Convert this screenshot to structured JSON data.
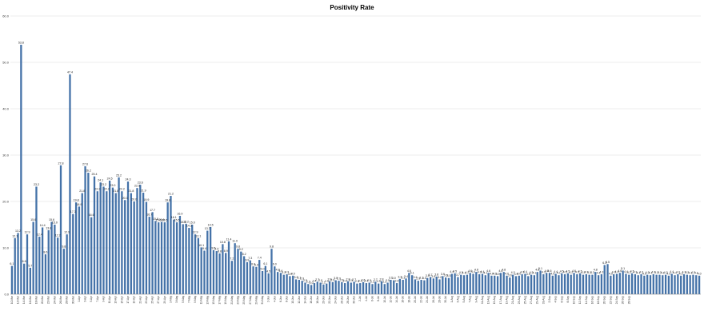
{
  "chart_data": {
    "type": "bar",
    "title": "Positivity Rate",
    "xlabel": "",
    "ylabel": "",
    "ylim": [
      0,
      60
    ],
    "yticks": [
      0,
      10,
      20,
      30,
      40,
      50,
      60
    ],
    "ytick_labels": [
      "0.0",
      "10.0",
      "20.0",
      "30.0",
      "40.0",
      "50.0",
      "60.0"
    ],
    "grid": true,
    "legend": "none",
    "bar_color": "#4472a8",
    "x_tick_labels": [
      "10-Mar",
      "12-Mar",
      "14-Mar",
      "16-Mar",
      "18-Mar",
      "20-Mar",
      "22-Mar",
      "24-Mar",
      "26-Mar",
      "28-Mar",
      "30-Mar",
      "1-Apr",
      "3-Apr",
      "5-Apr",
      "7-Apr",
      "9-Apr",
      "11-Apr",
      "13-Apr",
      "15-Apr",
      "17-Apr",
      "19-Apr",
      "21-Apr",
      "23-Apr",
      "25-Apr",
      "27-Apr",
      "29-Apr",
      "1-May",
      "3-May",
      "5-May",
      "7-May",
      "9-May",
      "11-May",
      "13-May",
      "15-May",
      "17-May",
      "19-May",
      "21-May",
      "23-May",
      "25-May",
      "27-May",
      "29-May",
      "31-May",
      "2-Jun",
      "4-Jun",
      "6-Jun",
      "8-Jun",
      "10-Jun",
      "12-Jun",
      "14-Jun",
      "16-Jun",
      "18-Jun",
      "20-Jun",
      "22-Jun",
      "24-Jun",
      "26-Jun",
      "28-Jun",
      "30-Jun",
      "2-Jul",
      "4-Jul",
      "6-Jul",
      "8-Jul",
      "10-Jul",
      "12-Jul",
      "14-Jul",
      "16-Jul",
      "18-Jul",
      "20-Jul",
      "22-Jul",
      "24-Jul",
      "26-Jul",
      "28-Jul",
      "30-Jul",
      "1-Aug",
      "3-Aug",
      "5-Aug",
      "7-Aug",
      "9-Aug",
      "11-Aug",
      "13-Aug",
      "15-Aug",
      "17-Aug",
      "19-Aug",
      "21-Aug",
      "23-Aug",
      "25-Aug",
      "27-Aug",
      "29-Aug",
      "31-Aug",
      "2-Sep",
      "4-Sep",
      "6-Sep",
      "8-Sep",
      "10-Sep",
      "12-Sep",
      "14-Sep",
      "16-Sep",
      "18-Sep",
      "20-Sep",
      "22-Sep",
      "24-Sep",
      "26-Sep",
      "28-Sep"
    ],
    "values": [
      6.1,
      12.1,
      13.2,
      53.8,
      6.6,
      12.9,
      5.7,
      15.6,
      23.2,
      12.4,
      14.4,
      8.6,
      13.8,
      15.6,
      15.0,
      12.2,
      27.8,
      9.8,
      12.9,
      47.4,
      17.3,
      19.8,
      18.9,
      21.8,
      27.6,
      26.2,
      16.6,
      25.4,
      22.2,
      24.1,
      23.2,
      22.2,
      24.5,
      23.0,
      21.8,
      25.2,
      22.2,
      20.3,
      24.3,
      21.8,
      20.0,
      22.9,
      23.6,
      21.9,
      19.9,
      16.7,
      17.7,
      15.8,
      15.5,
      15.6,
      15.5,
      19.8,
      21.2,
      16.1,
      15.5,
      16.9,
      15.1,
      15.2,
      14.3,
      15.0,
      12.9,
      12.1,
      10.1,
      9.4,
      13.7,
      14.5,
      9.5,
      9.3,
      8.8,
      10.8,
      8.9,
      11.4,
      7.2,
      11.0,
      9.8,
      9.2,
      8.2,
      6.9,
      7.3,
      6.0,
      5.9,
      7.4,
      5.0,
      6.1,
      4.5,
      9.8,
      6.0,
      4.8,
      4.6,
      4.2,
      4.3,
      3.9,
      4.0,
      3.2,
      3.1,
      2.9,
      2.5,
      2.2,
      2.0,
      2.4,
      2.7,
      2.5,
      2.1,
      2.3,
      2.8,
      2.6,
      3.0,
      2.9,
      2.6,
      2.4,
      2.8,
      2.5,
      2.7,
      2.3,
      2.4,
      2.6,
      2.4,
      2.5,
      2.2,
      2.7,
      2.3,
      2.8,
      2.2,
      2.5,
      3.1,
      3.0,
      2.4,
      3.3,
      3.1,
      3.4,
      4.6,
      4.1,
      3.2,
      2.9,
      3.1,
      3.0,
      3.5,
      3.7,
      3.4,
      3.8,
      3.2,
      3.9,
      3.6,
      3.5,
      4.4,
      4.5,
      3.7,
      4.2,
      4.1,
      4.2,
      4.6,
      4.4,
      4.8,
      4.3,
      4.4,
      4.1,
      4.6,
      4.0,
      4.0,
      3.9,
      4.6,
      4.8,
      4.0,
      3.6,
      4.2,
      3.9,
      4.0,
      4.3,
      4.4,
      3.9,
      4.2,
      4.1,
      4.8,
      5.1,
      4.3,
      4.6,
      4.6,
      4.0,
      4.4,
      4.1,
      4.5,
      4.3,
      4.5,
      4.2,
      4.6,
      4.3,
      4.5,
      4.2,
      4.3,
      4.2,
      4.2,
      4.8,
      4.1,
      4.3,
      6.3,
      6.5,
      4.0,
      4.3,
      4.4,
      4.6,
      5.1,
      4.4,
      4.2,
      4.5,
      4.3,
      4.1,
      4.3,
      4.0,
      4.2,
      4.1,
      4.3,
      4.2,
      4.2,
      4.1,
      4.2,
      4.0,
      4.4,
      4.1,
      4.3,
      4.0,
      4.3,
      4.2,
      4.1,
      4.2,
      4.1,
      4.0
    ]
  }
}
